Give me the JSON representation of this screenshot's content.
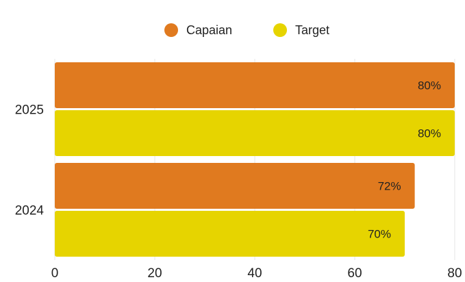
{
  "chart_data": {
    "type": "bar",
    "orientation": "horizontal",
    "categories": [
      "2025",
      "2024"
    ],
    "series": [
      {
        "name": "Capaian",
        "values": [
          80,
          72
        ],
        "labels": [
          "80%",
          "72%"
        ],
        "color": "#E07A1F"
      },
      {
        "name": "Target",
        "values": [
          80,
          70
        ],
        "labels": [
          "80%",
          "70%"
        ],
        "color": "#E6D400"
      }
    ],
    "xlim": [
      0,
      80
    ],
    "x_ticks": [
      0,
      20,
      40,
      60,
      80
    ],
    "grid": true,
    "legend_position": "top-center"
  }
}
